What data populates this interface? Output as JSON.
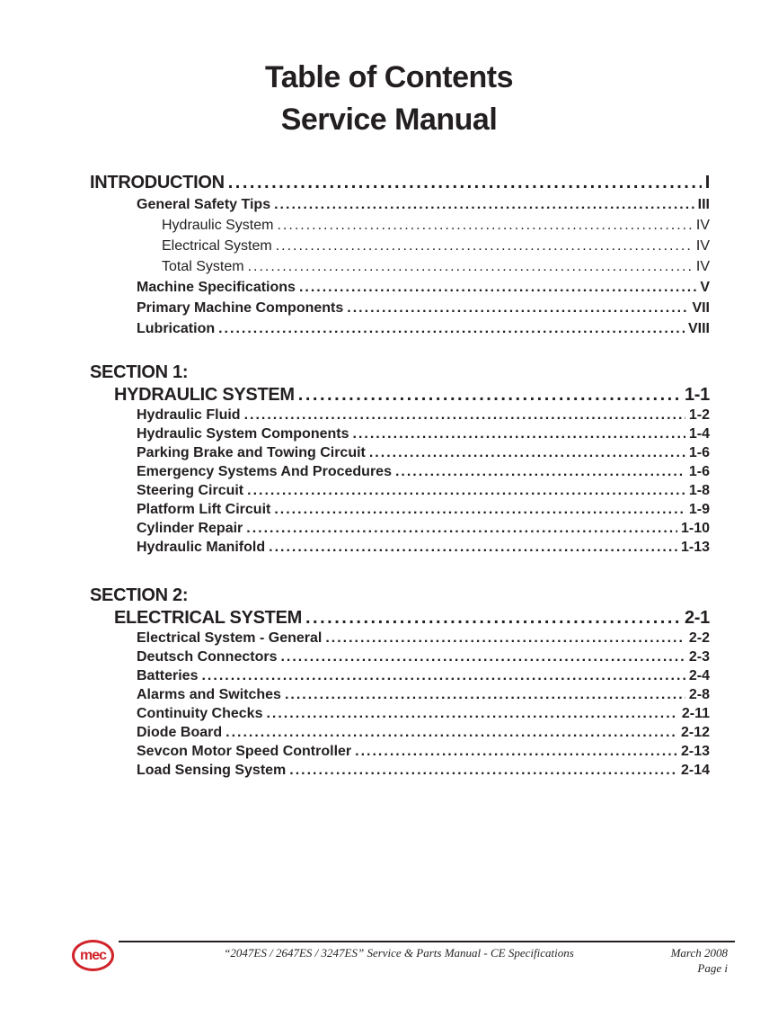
{
  "page_title": {
    "line1": "Table of Contents",
    "line2": "Service Manual"
  },
  "toc": {
    "blocks": [
      {
        "heading": null,
        "entries": [
          {
            "label": "INTRODUCTION",
            "page": "I",
            "style": "h1"
          },
          {
            "label": "General Safety Tips",
            "page": "III",
            "style": "b1"
          },
          {
            "label": "Hydraulic System",
            "page": "IV",
            "style": "r2"
          },
          {
            "label": "Electrical System",
            "page": "IV",
            "style": "r2"
          },
          {
            "label": "Total System",
            "page": "IV",
            "style": "r2"
          },
          {
            "label": "Machine Specifications",
            "page": "V",
            "style": "b1"
          },
          {
            "label": "Primary Machine Components",
            "page": "VII",
            "style": "b1"
          },
          {
            "label": "Lubrication",
            "page": "VIII",
            "style": "b1"
          }
        ]
      },
      {
        "heading": "SECTION 1:",
        "entries": [
          {
            "label": "HYDRAULIC SYSTEM",
            "page": "1-1",
            "style": "h2"
          },
          {
            "label": "Hydraulic Fluid",
            "page": "1-2",
            "style": "b1"
          },
          {
            "label": "Hydraulic System Components",
            "page": "1-4",
            "style": "b1"
          },
          {
            "label": "Parking Brake and Towing Circuit",
            "page": "1-6",
            "style": "b1"
          },
          {
            "label": "Emergency Systems And Procedures",
            "page": "1-6",
            "style": "b1"
          },
          {
            "label": "Steering Circuit",
            "page": "1-8",
            "style": "b1"
          },
          {
            "label": "Platform Lift Circuit",
            "page": "1-9",
            "style": "b1"
          },
          {
            "label": "Cylinder Repair",
            "page": "1-10",
            "style": "b1"
          },
          {
            "label": "Hydraulic Manifold",
            "page": "1-13",
            "style": "b1"
          }
        ]
      },
      {
        "heading": "SECTION 2:",
        "entries": [
          {
            "label": "ELECTRICAL SYSTEM",
            "page": "2-1",
            "style": "h2"
          },
          {
            "label": "Electrical System - General",
            "page": "2-2",
            "style": "b1"
          },
          {
            "label": "Deutsch Connectors",
            "page": "2-3",
            "style": "b1"
          },
          {
            "label": "Batteries",
            "page": "2-4",
            "style": "b1"
          },
          {
            "label": "Alarms and Switches",
            "page": "2-8",
            "style": "b1"
          },
          {
            "label": "Continuity Checks",
            "page": "2-11",
            "style": "b1"
          },
          {
            "label": "Diode Board",
            "page": "2-12",
            "style": "b1"
          },
          {
            "label": "Sevcon Motor Speed Controller",
            "page": "2-13",
            "style": "b1"
          },
          {
            "label": "Load Sensing System",
            "page": "2-14",
            "style": "b1"
          }
        ]
      }
    ]
  },
  "footer": {
    "logo_text": "mec",
    "logo_color": "#d12229",
    "manual_title": "“2047ES / 2647ES / 3247ES” Service & Parts Manual - CE Specifications",
    "date": "March 2008",
    "page_number": "Page i"
  },
  "colors": {
    "text": "#231f20",
    "background": "#ffffff",
    "logo_red": "#d12229"
  }
}
